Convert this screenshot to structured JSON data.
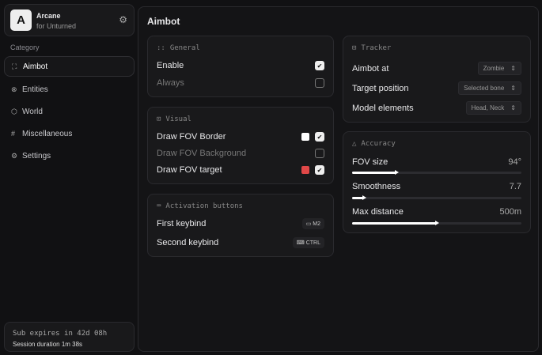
{
  "brand": {
    "logo": "A",
    "name": "Arcane",
    "subtitle": "for Unturned"
  },
  "sidebar": {
    "category_label": "Category",
    "items": [
      {
        "label": "Aimbot",
        "icon": "crosshair-icon"
      },
      {
        "label": "Entities",
        "icon": "entities-icon"
      },
      {
        "label": "World",
        "icon": "cube-icon"
      },
      {
        "label": "Miscellaneous",
        "icon": "grid-icon"
      },
      {
        "label": "Settings",
        "icon": "gear-icon"
      }
    ]
  },
  "subscription": {
    "expires": "Sub expires in 42d 08h",
    "session": "Session duration 1m 38s"
  },
  "page": {
    "title": "Aimbot"
  },
  "general": {
    "title": "General",
    "enable": "Enable",
    "always": "Always",
    "enable_checked": true,
    "always_checked": false
  },
  "visual": {
    "title": "Visual",
    "border": "Draw FOV Border",
    "background": "Draw FOV Background",
    "target": "Draw FOV target",
    "border_color": "#ffffff",
    "target_color": "#e04848",
    "border_checked": true,
    "background_checked": false,
    "target_checked": true
  },
  "activation": {
    "title": "Activation buttons",
    "first": "First keybind",
    "first_key": "M2",
    "second": "Second keybind",
    "second_key": "CTRL"
  },
  "tracker": {
    "title": "Tracker",
    "aimbot_at": "Aimbot at",
    "aimbot_at_value": "Zombie",
    "target_position": "Target position",
    "target_position_value": "Selected bone",
    "model_elements": "Model elements",
    "model_elements_value": "Head, Neck"
  },
  "accuracy": {
    "title": "Accuracy",
    "fov": "FOV size",
    "fov_value": "94°",
    "fov_fraction": 0.26,
    "smooth": "Smoothness",
    "smooth_value": "7.7",
    "smooth_fraction": 0.07,
    "dist": "Max distance",
    "dist_value": "500m",
    "dist_fraction": 0.5
  }
}
